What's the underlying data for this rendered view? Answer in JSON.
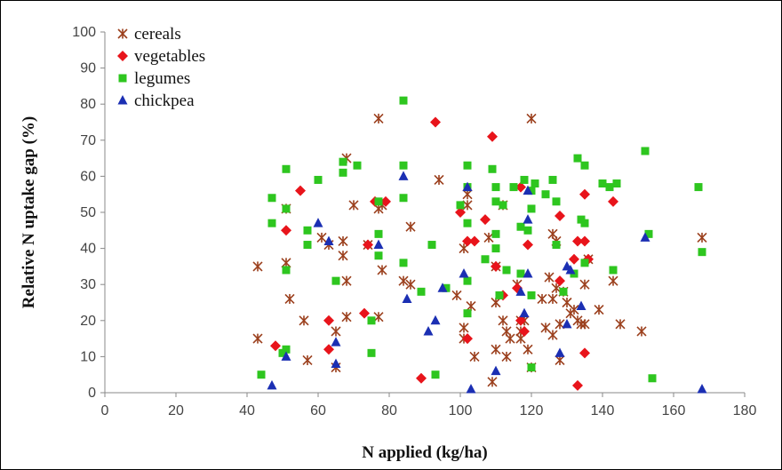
{
  "chart_data": {
    "type": "scatter",
    "title": "",
    "xlabel": "N applied (kg/ha)",
    "ylabel": "Relative N uptake gap (%)",
    "xlim": [
      0,
      180
    ],
    "ylim": [
      0,
      100
    ],
    "xticks": [
      0,
      20,
      40,
      60,
      80,
      100,
      120,
      140,
      160,
      180
    ],
    "yticks": [
      0,
      10,
      20,
      30,
      40,
      50,
      60,
      70,
      80,
      90,
      100
    ],
    "grid": false,
    "legend": "top-left",
    "series": [
      {
        "name": "cereals",
        "marker": "asterisk",
        "color": "#9b3f1c",
        "points": [
          [
            43,
            35
          ],
          [
            43,
            15
          ],
          [
            51,
            36
          ],
          [
            51,
            51
          ],
          [
            52,
            26
          ],
          [
            56,
            20
          ],
          [
            57,
            9
          ],
          [
            61,
            43
          ],
          [
            63,
            41
          ],
          [
            65,
            17
          ],
          [
            65,
            7
          ],
          [
            67,
            42
          ],
          [
            67,
            38
          ],
          [
            68,
            31
          ],
          [
            68,
            21
          ],
          [
            68,
            65
          ],
          [
            70,
            52
          ],
          [
            74,
            41
          ],
          [
            77,
            21
          ],
          [
            77,
            76
          ],
          [
            77,
            51
          ],
          [
            78,
            34
          ],
          [
            78,
            52
          ],
          [
            84,
            31
          ],
          [
            86,
            46
          ],
          [
            86,
            30
          ],
          [
            94,
            59
          ],
          [
            99,
            27
          ],
          [
            101,
            40
          ],
          [
            101,
            18
          ],
          [
            101,
            15
          ],
          [
            102,
            55
          ],
          [
            102,
            52
          ],
          [
            103,
            24
          ],
          [
            104,
            10
          ],
          [
            108,
            43
          ],
          [
            109,
            3
          ],
          [
            110,
            12
          ],
          [
            110,
            35
          ],
          [
            110,
            25
          ],
          [
            112,
            20
          ],
          [
            112,
            52
          ],
          [
            113,
            17
          ],
          [
            113,
            10
          ],
          [
            114,
            15
          ],
          [
            116,
            30
          ],
          [
            117,
            15
          ],
          [
            117,
            17
          ],
          [
            117,
            20
          ],
          [
            118,
            20
          ],
          [
            119,
            12
          ],
          [
            120,
            76
          ],
          [
            120,
            7
          ],
          [
            123,
            26
          ],
          [
            124,
            18
          ],
          [
            125,
            32
          ],
          [
            126,
            16
          ],
          [
            126,
            26
          ],
          [
            126,
            44
          ],
          [
            127,
            29
          ],
          [
            127,
            42
          ],
          [
            128,
            19
          ],
          [
            128,
            9
          ],
          [
            129,
            28
          ],
          [
            130,
            25
          ],
          [
            131,
            22
          ],
          [
            132,
            23
          ],
          [
            133,
            20
          ],
          [
            134,
            19
          ],
          [
            135,
            19
          ],
          [
            135,
            30
          ],
          [
            136,
            37
          ],
          [
            139,
            23
          ],
          [
            143,
            31
          ],
          [
            145,
            19
          ],
          [
            151,
            17
          ],
          [
            168,
            43
          ]
        ]
      },
      {
        "name": "vegetables",
        "marker": "diamond",
        "color": "#e8141b",
        "points": [
          [
            48,
            13
          ],
          [
            51,
            45
          ],
          [
            55,
            56
          ],
          [
            63,
            20
          ],
          [
            63,
            12
          ],
          [
            73,
            22
          ],
          [
            74,
            41
          ],
          [
            76,
            53
          ],
          [
            79,
            53
          ],
          [
            89,
            4
          ],
          [
            93,
            75
          ],
          [
            100,
            50
          ],
          [
            102,
            15
          ],
          [
            102,
            42
          ],
          [
            104,
            42
          ],
          [
            107,
            48
          ],
          [
            109,
            71
          ],
          [
            110,
            35
          ],
          [
            112,
            27
          ],
          [
            116,
            29
          ],
          [
            117,
            57
          ],
          [
            117,
            20
          ],
          [
            118,
            17
          ],
          [
            119,
            41
          ],
          [
            128,
            31
          ],
          [
            128,
            49
          ],
          [
            132,
            37
          ],
          [
            133,
            42
          ],
          [
            133,
            2
          ],
          [
            135,
            55
          ],
          [
            135,
            42
          ],
          [
            135,
            11
          ],
          [
            136,
            37
          ],
          [
            143,
            53
          ]
        ]
      },
      {
        "name": "legumes",
        "marker": "square",
        "color": "#2ec61f",
        "points": [
          [
            44,
            5
          ],
          [
            47,
            54
          ],
          [
            47,
            47
          ],
          [
            50,
            11
          ],
          [
            51,
            51
          ],
          [
            51,
            62
          ],
          [
            51,
            34
          ],
          [
            51,
            12
          ],
          [
            57,
            45
          ],
          [
            57,
            41
          ],
          [
            60,
            59
          ],
          [
            65,
            31
          ],
          [
            67,
            64
          ],
          [
            67,
            61
          ],
          [
            71,
            63
          ],
          [
            75,
            20
          ],
          [
            75,
            11
          ],
          [
            77,
            38
          ],
          [
            77,
            53
          ],
          [
            77,
            44
          ],
          [
            84,
            81
          ],
          [
            84,
            63
          ],
          [
            84,
            54
          ],
          [
            84,
            36
          ],
          [
            89,
            28
          ],
          [
            92,
            41
          ],
          [
            93,
            5
          ],
          [
            96,
            29
          ],
          [
            100,
            52
          ],
          [
            102,
            63
          ],
          [
            102,
            57
          ],
          [
            102,
            47
          ],
          [
            102,
            31
          ],
          [
            102,
            22
          ],
          [
            107,
            37
          ],
          [
            109,
            62
          ],
          [
            110,
            57
          ],
          [
            110,
            53
          ],
          [
            110,
            44
          ],
          [
            110,
            40
          ],
          [
            111,
            27
          ],
          [
            112,
            52
          ],
          [
            113,
            34
          ],
          [
            115,
            57
          ],
          [
            117,
            46
          ],
          [
            117,
            33
          ],
          [
            118,
            59
          ],
          [
            119,
            45
          ],
          [
            120,
            56
          ],
          [
            120,
            51
          ],
          [
            120,
            27
          ],
          [
            120,
            7
          ],
          [
            121,
            58
          ],
          [
            124,
            55
          ],
          [
            126,
            59
          ],
          [
            127,
            53
          ],
          [
            127,
            41
          ],
          [
            129,
            28
          ],
          [
            132,
            33
          ],
          [
            133,
            65
          ],
          [
            134,
            48
          ],
          [
            135,
            63
          ],
          [
            135,
            47
          ],
          [
            135,
            36
          ],
          [
            140,
            58
          ],
          [
            142,
            57
          ],
          [
            143,
            34
          ],
          [
            144,
            58
          ],
          [
            152,
            67
          ],
          [
            153,
            44
          ],
          [
            154,
            4
          ],
          [
            167,
            57
          ],
          [
            168,
            39
          ]
        ]
      },
      {
        "name": "chickpea",
        "marker": "triangle",
        "color": "#1b2fb3",
        "points": [
          [
            47,
            2
          ],
          [
            51,
            10
          ],
          [
            60,
            47
          ],
          [
            63,
            42
          ],
          [
            65,
            14
          ],
          [
            65,
            8
          ],
          [
            77,
            41
          ],
          [
            84,
            60
          ],
          [
            85,
            26
          ],
          [
            91,
            17
          ],
          [
            93,
            20
          ],
          [
            95,
            29
          ],
          [
            101,
            33
          ],
          [
            102,
            57
          ],
          [
            103,
            1
          ],
          [
            110,
            6
          ],
          [
            117,
            28
          ],
          [
            118,
            22
          ],
          [
            119,
            56
          ],
          [
            119,
            48
          ],
          [
            119,
            33
          ],
          [
            128,
            11
          ],
          [
            130,
            19
          ],
          [
            130,
            35
          ],
          [
            131,
            34
          ],
          [
            134,
            24
          ],
          [
            152,
            43
          ],
          [
            168,
            1
          ]
        ]
      }
    ]
  }
}
